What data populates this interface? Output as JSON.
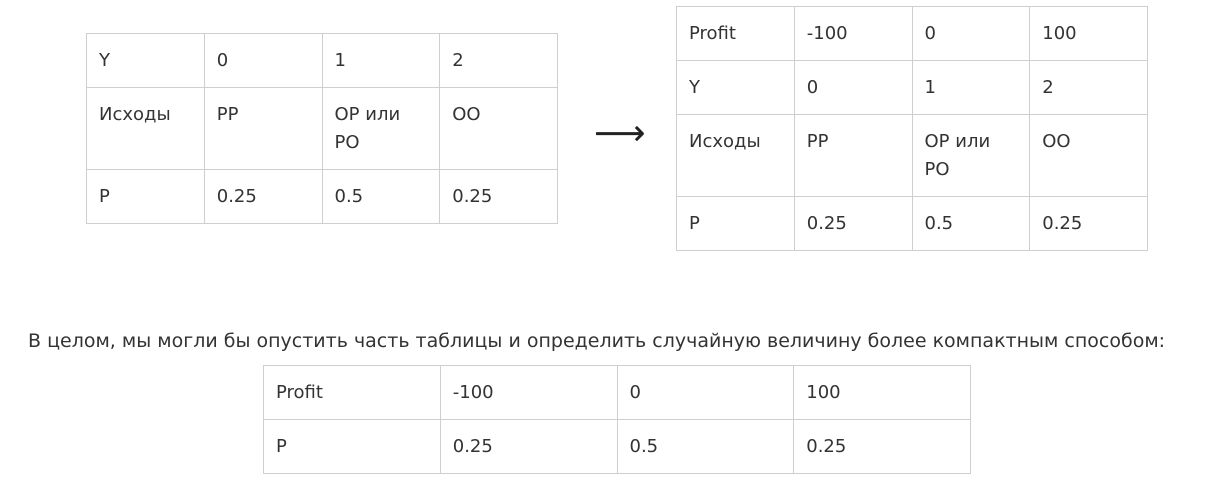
{
  "table_left": {
    "rows": [
      [
        "Y",
        "0",
        "1",
        "2"
      ],
      [
        "Исходы",
        "РР",
        "ОР или РО",
        "ОО"
      ],
      [
        "P",
        "0.25",
        "0.5",
        "0.25"
      ]
    ]
  },
  "arrow": "⟶",
  "table_right": {
    "rows": [
      [
        "Profit",
        "-100",
        "0",
        "100"
      ],
      [
        "Y",
        "0",
        "1",
        "2"
      ],
      [
        "Исходы",
        "РР",
        "ОР или РО",
        "ОО"
      ],
      [
        "P",
        "0.25",
        "0.5",
        "0.25"
      ]
    ]
  },
  "paragraph": "В целом, мы могли бы опустить часть таблицы и определить случайную величину более компактным способом:",
  "table_bottom": {
    "rows": [
      [
        "Profit",
        "-100",
        "0",
        "100"
      ],
      [
        "P",
        "0.25",
        "0.5",
        "0.25"
      ]
    ]
  }
}
